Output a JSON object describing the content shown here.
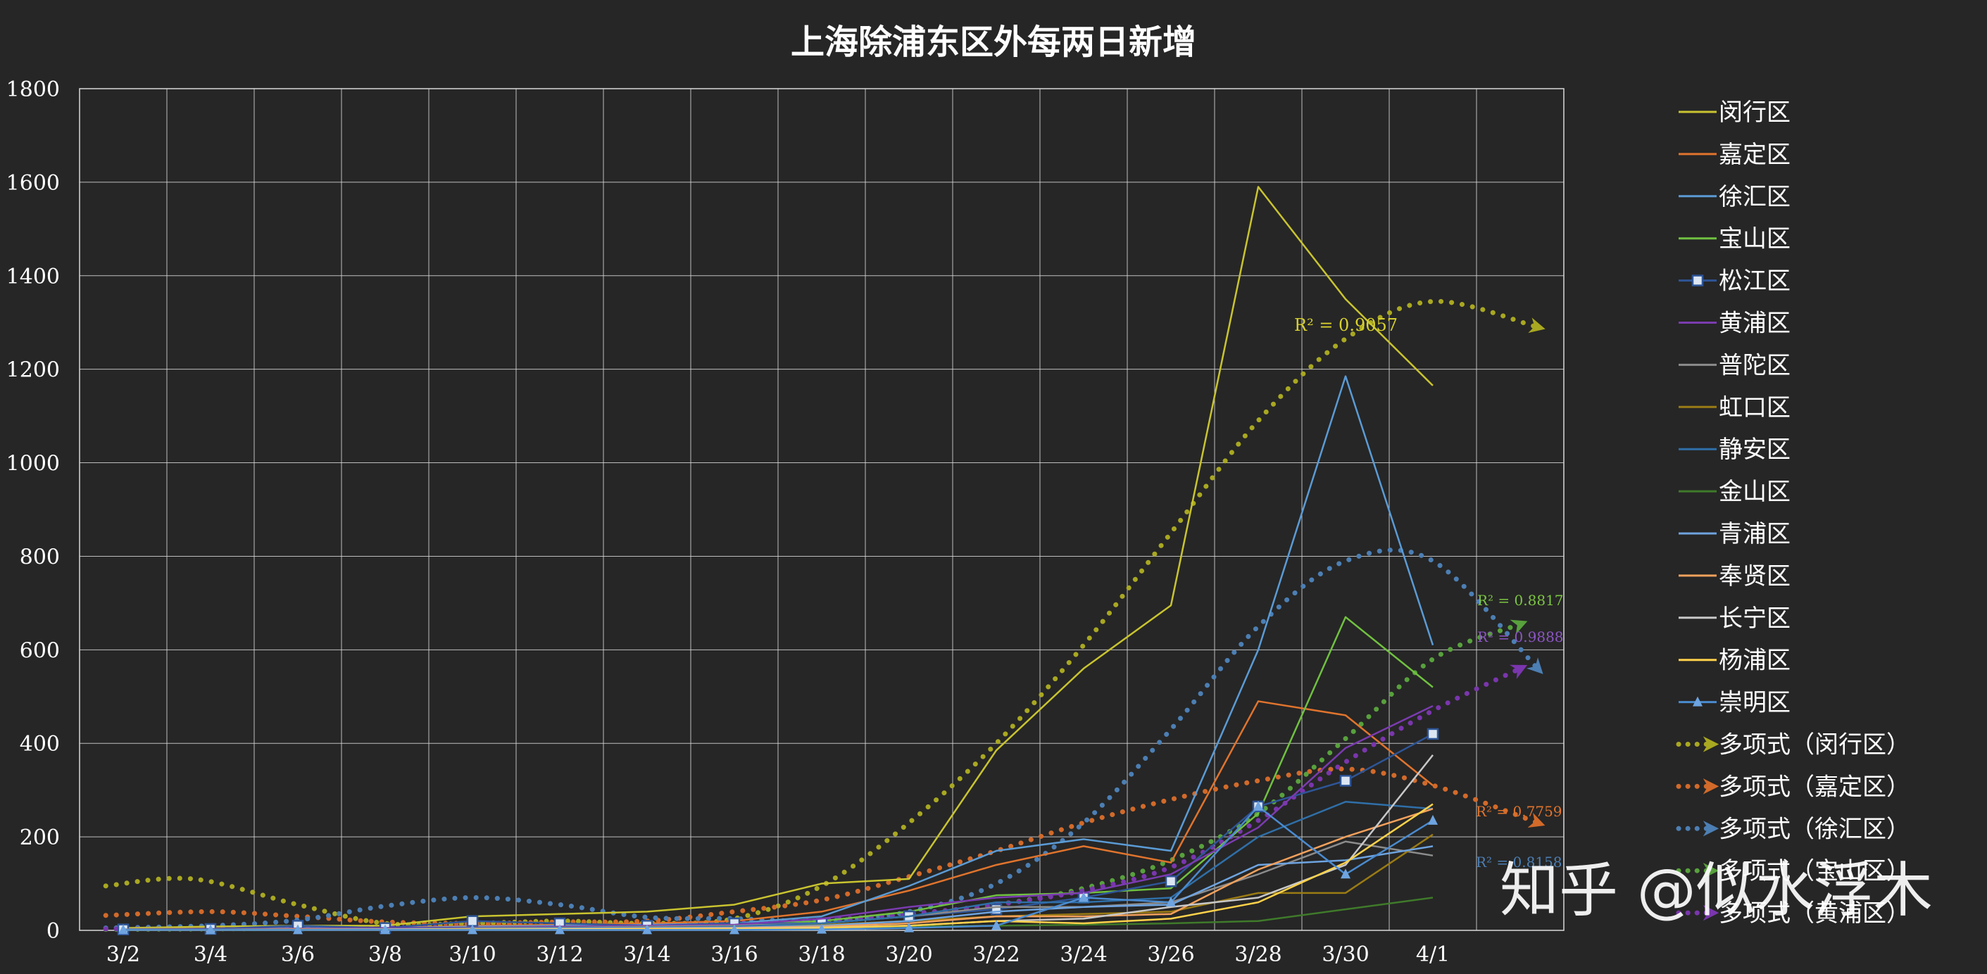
{
  "chart_data": {
    "type": "line",
    "title": "上海除浦东区外每两日新增",
    "xlabel": "",
    "ylabel": "",
    "ylim": [
      0,
      1800
    ],
    "yticks": [
      0,
      200,
      400,
      600,
      800,
      1000,
      1200,
      1400,
      1600,
      1800
    ],
    "categories": [
      "3/2",
      "3/4",
      "3/6",
      "3/8",
      "3/10",
      "3/12",
      "3/14",
      "3/16",
      "3/18",
      "3/20",
      "3/22",
      "3/24",
      "3/26",
      "3/28",
      "3/30",
      "4/1"
    ],
    "grid": true,
    "legend_position": "right",
    "series": [
      {
        "name": "闵行区",
        "color": "#c9c42f",
        "marker": "none",
        "values": [
          5,
          8,
          10,
          10,
          30,
          35,
          40,
          55,
          100,
          110,
          385,
          560,
          695,
          1590,
          1350,
          1165
        ]
      },
      {
        "name": "嘉定区",
        "color": "#e0742d",
        "marker": "none",
        "values": [
          3,
          4,
          5,
          5,
          10,
          12,
          15,
          20,
          40,
          85,
          140,
          180,
          145,
          490,
          460,
          310
        ]
      },
      {
        "name": "徐汇区",
        "color": "#5b9bd5",
        "marker": "none",
        "values": [
          3,
          3,
          5,
          5,
          8,
          10,
          12,
          15,
          30,
          95,
          170,
          195,
          170,
          600,
          1185,
          610
        ]
      },
      {
        "name": "宝山区",
        "color": "#70c140",
        "marker": "none",
        "values": [
          2,
          3,
          3,
          4,
          6,
          8,
          10,
          12,
          20,
          40,
          75,
          80,
          90,
          250,
          670,
          520
        ]
      },
      {
        "name": "松江区",
        "color": "#2e5597",
        "marker": "square",
        "values": [
          2,
          3,
          10,
          5,
          20,
          15,
          10,
          15,
          15,
          30,
          45,
          70,
          105,
          265,
          320,
          420
        ]
      },
      {
        "name": "黄浦区",
        "color": "#7b3bb0",
        "marker": "none",
        "values": [
          2,
          3,
          4,
          5,
          6,
          8,
          10,
          12,
          25,
          50,
          70,
          80,
          120,
          220,
          390,
          480
        ]
      },
      {
        "name": "普陀区",
        "color": "#8c8c8c",
        "marker": "none",
        "values": [
          2,
          2,
          3,
          3,
          5,
          6,
          8,
          10,
          15,
          30,
          50,
          50,
          60,
          120,
          190,
          160
        ]
      },
      {
        "name": "虹口区",
        "color": "#9a7b14",
        "marker": "none",
        "values": [
          1,
          2,
          2,
          3,
          4,
          5,
          6,
          8,
          12,
          20,
          30,
          35,
          40,
          80,
          80,
          205
        ]
      },
      {
        "name": "静安区",
        "color": "#2f6fa8",
        "marker": "none",
        "values": [
          1,
          2,
          2,
          3,
          4,
          5,
          6,
          8,
          15,
          30,
          60,
          60,
          70,
          200,
          275,
          260
        ]
      },
      {
        "name": "金山区",
        "color": "#3f7a2a",
        "marker": "none",
        "values": [
          1,
          1,
          1,
          2,
          2,
          3,
          3,
          4,
          5,
          8,
          10,
          12,
          15,
          20,
          45,
          70
        ]
      },
      {
        "name": "青浦区",
        "color": "#6ea4e0",
        "marker": "none",
        "values": [
          1,
          1,
          2,
          2,
          3,
          4,
          5,
          6,
          10,
          20,
          40,
          50,
          55,
          140,
          150,
          180
        ]
      },
      {
        "name": "奉贤区",
        "color": "#f4a15c",
        "marker": "none",
        "values": [
          1,
          1,
          2,
          2,
          3,
          3,
          4,
          5,
          8,
          15,
          30,
          30,
          35,
          130,
          200,
          260
        ]
      },
      {
        "name": "长宁区",
        "color": "#c8c8c8",
        "marker": "none",
        "values": [
          1,
          1,
          1,
          2,
          2,
          3,
          3,
          4,
          6,
          10,
          20,
          25,
          50,
          70,
          140,
          375
        ]
      },
      {
        "name": "杨浦区",
        "color": "#ffd24a",
        "marker": "none",
        "values": [
          1,
          1,
          1,
          1,
          2,
          2,
          3,
          3,
          5,
          10,
          20,
          15,
          25,
          60,
          145,
          270
        ]
      },
      {
        "name": "崇明区",
        "color": "#4a8bd0",
        "marker": "triangle",
        "values": [
          1,
          1,
          1,
          1,
          1,
          1,
          1,
          1,
          2,
          5,
          10,
          70,
          60,
          265,
          120,
          235
        ]
      }
    ],
    "trendlines": [
      {
        "name": "多项式（闵行区）",
        "color": "#a9a821",
        "r2_label": "R² = 0.9057",
        "label_color": "#d8d12e",
        "points": [
          [
            -0.2,
            95
          ],
          [
            0.8,
            110
          ],
          [
            2,
            55
          ],
          [
            3,
            15
          ],
          [
            4,
            15
          ],
          [
            5,
            20
          ],
          [
            6,
            15
          ],
          [
            7,
            25
          ],
          [
            8,
            95
          ],
          [
            9,
            230
          ],
          [
            10,
            400
          ],
          [
            11,
            610
          ],
          [
            12,
            850
          ],
          [
            13,
            1090
          ],
          [
            14,
            1265
          ],
          [
            15,
            1345
          ],
          [
            16.2,
            1290
          ]
        ]
      },
      {
        "name": "多项式（嘉定区）",
        "color": "#d26a2a",
        "r2_label": "R² = 0.7759",
        "label_color": "#e0742d",
        "points": [
          [
            -0.2,
            32
          ],
          [
            1,
            40
          ],
          [
            2,
            30
          ],
          [
            3,
            18
          ],
          [
            4,
            15
          ],
          [
            5,
            18
          ],
          [
            6,
            20
          ],
          [
            7,
            40
          ],
          [
            8,
            65
          ],
          [
            9,
            115
          ],
          [
            10,
            170
          ],
          [
            11,
            230
          ],
          [
            12,
            280
          ],
          [
            13,
            320
          ],
          [
            14,
            345
          ],
          [
            15,
            310
          ],
          [
            16.2,
            230
          ]
        ]
      },
      {
        "name": "多项式（徐汇区）",
        "color": "#4c7fb4",
        "r2_label": "R² = 0.8158",
        "label_color": "#4c7fb4",
        "points": [
          [
            -0.2,
            5
          ],
          [
            1,
            10
          ],
          [
            2,
            22
          ],
          [
            3,
            52
          ],
          [
            4,
            70
          ],
          [
            5,
            55
          ],
          [
            6,
            28
          ],
          [
            7,
            25
          ],
          [
            8,
            20
          ],
          [
            9,
            40
          ],
          [
            10,
            100
          ],
          [
            11,
            230
          ],
          [
            12,
            430
          ],
          [
            13,
            650
          ],
          [
            14,
            790
          ],
          [
            15,
            790
          ],
          [
            16.2,
            560
          ]
        ]
      },
      {
        "name": "多项式（宝山区）",
        "color": "#58a13d",
        "r2_label": "R² = 0.8817",
        "label_color": "#7cc543",
        "points": [
          [
            -0.2,
            2
          ],
          [
            2,
            4
          ],
          [
            4,
            6
          ],
          [
            6,
            8
          ],
          [
            7,
            12
          ],
          [
            8,
            20
          ],
          [
            9,
            35
          ],
          [
            10,
            55
          ],
          [
            11,
            90
          ],
          [
            12,
            150
          ],
          [
            13,
            250
          ],
          [
            14,
            410
          ],
          [
            15,
            580
          ],
          [
            16,
            655
          ]
        ]
      },
      {
        "name": "多项式（黄浦区）",
        "color": "#7a36ad",
        "r2_label": "R² = 0.9888",
        "label_color": "#8c55c4",
        "points": [
          [
            -0.2,
            3
          ],
          [
            2,
            5
          ],
          [
            4,
            7
          ],
          [
            6,
            10
          ],
          [
            7,
            15
          ],
          [
            8,
            22
          ],
          [
            9,
            35
          ],
          [
            10,
            55
          ],
          [
            11,
            85
          ],
          [
            12,
            135
          ],
          [
            13,
            235
          ],
          [
            14,
            360
          ],
          [
            15,
            470
          ],
          [
            16,
            560
          ]
        ]
      }
    ]
  },
  "watermark": "知乎 @似水浮木"
}
